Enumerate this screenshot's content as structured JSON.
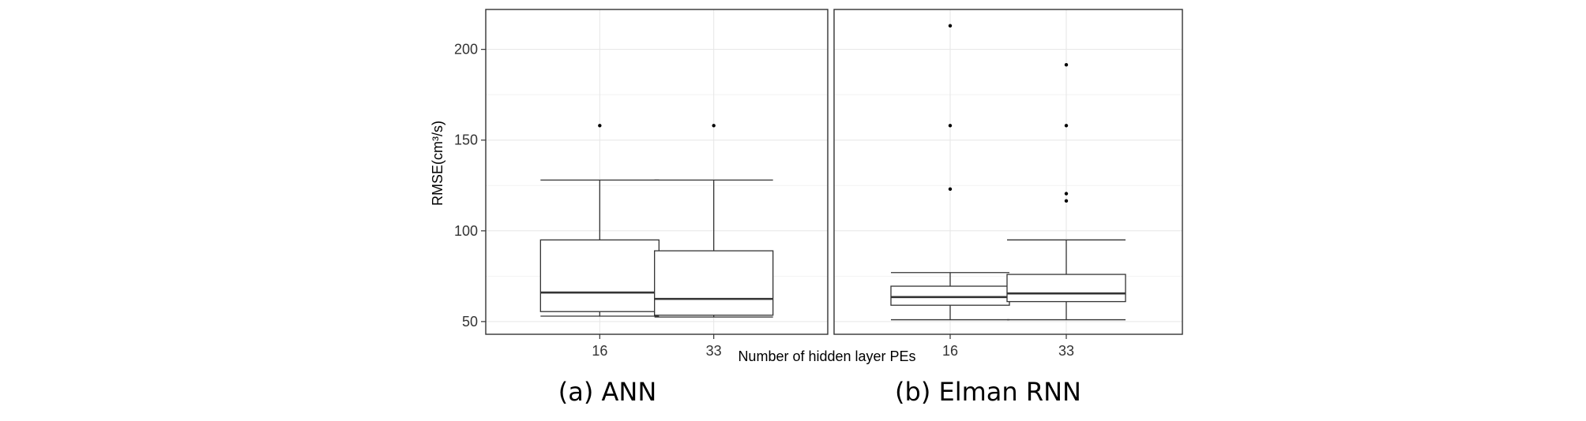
{
  "chart_data": {
    "type": "boxplot",
    "ylabel": "RMSE(cm³/s)",
    "xlabel": "Number of hidden layer PEs",
    "ylim": [
      43,
      222
    ],
    "yticks": [
      50,
      100,
      150,
      200
    ],
    "grid": true,
    "colors": {
      "box_stroke": "#333333",
      "grid": "#e6e6e6",
      "panel_border": "#333333",
      "point": "#000000"
    },
    "panels": [
      {
        "caption": "(a) ANN",
        "categories": [
          "16",
          "33"
        ],
        "boxes": [
          {
            "category": "16",
            "whisker_low": 53,
            "q1": 55.5,
            "median": 66,
            "q3": 95,
            "whisker_high": 128,
            "outliers": [
              158
            ]
          },
          {
            "category": "33",
            "whisker_low": 52.5,
            "q1": 53.5,
            "median": 62.5,
            "q3": 89,
            "whisker_high": 128,
            "outliers": [
              158
            ]
          }
        ]
      },
      {
        "caption": "(b) Elman RNN",
        "categories": [
          "16",
          "33"
        ],
        "boxes": [
          {
            "category": "16",
            "whisker_low": 51,
            "q1": 59,
            "median": 63.5,
            "q3": 69.5,
            "whisker_high": 77,
            "outliers": [
              123,
              158,
              213
            ]
          },
          {
            "category": "33",
            "whisker_low": 51,
            "q1": 61,
            "median": 65.5,
            "q3": 76,
            "whisker_high": 95,
            "outliers": [
              116.5,
              120.5,
              158,
              191.5
            ]
          }
        ]
      }
    ]
  }
}
